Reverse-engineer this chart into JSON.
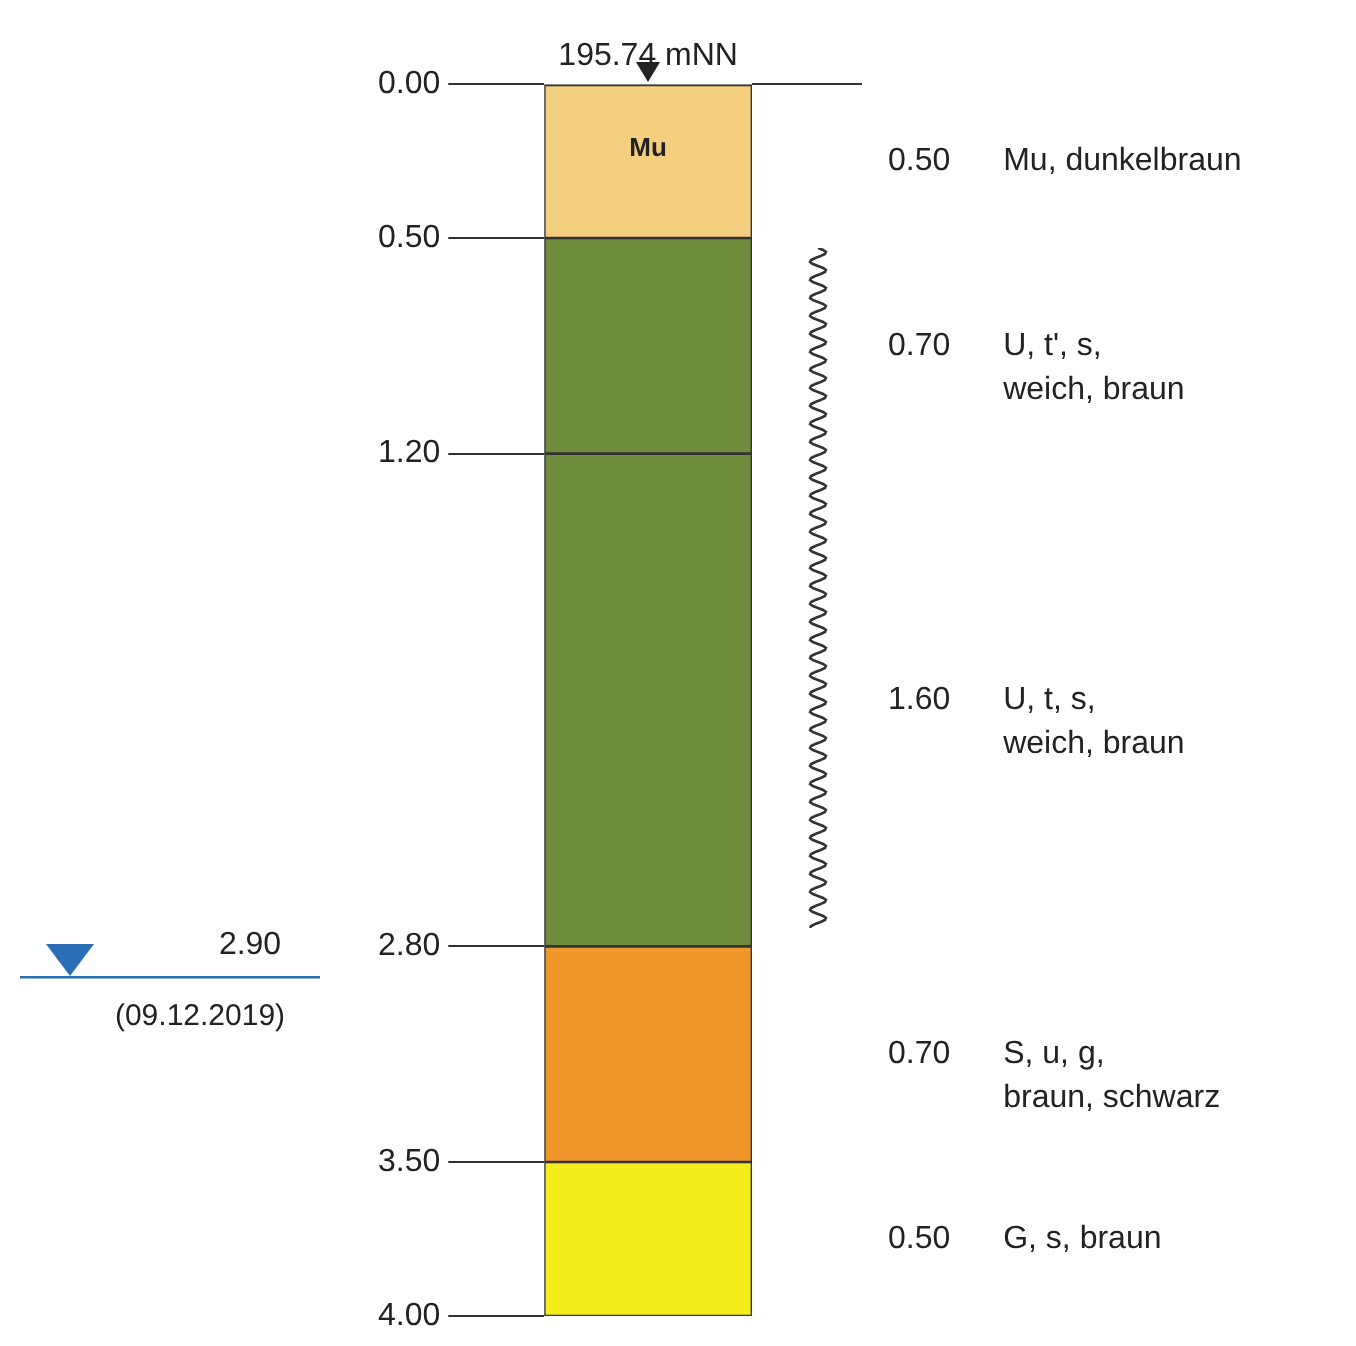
{
  "chart_data": {
    "type": "bar",
    "title": "195.74 mNN",
    "stacked": true,
    "categories": [
      null
    ],
    "series": [
      {
        "name": "0.50 Mu, dunkelbraun",
        "color": "#f5cf80",
        "values": [
          0.5
        ]
      },
      {
        "name": "0.70 U, t', s,\nweich, braun",
        "color": "#6f8c3d",
        "values": [
          0.7
        ]
      },
      {
        "name": "1.60 U, t, s,\nweich, braun",
        "color": "#6f8c3d",
        "values": [
          1.6
        ]
      },
      {
        "name": "0.70 S, u, g,\nbraun, schwarz",
        "color": "#f0962a",
        "values": [
          0.7
        ]
      },
      {
        "name": "0.50 G, s, braun",
        "color": "#f5ec1c",
        "values": [
          0.5
        ]
      }
    ],
    "ylim": [
      4,
      0
    ],
    "yticks": [
      {
        "value": 0,
        "label": "0.00"
      },
      {
        "value": 0.5,
        "label": "0.50"
      },
      {
        "value": 1.2,
        "label": "1.20"
      },
      {
        "value": 2.8,
        "label": "2.80"
      },
      {
        "value": 3.5,
        "label": "3.50"
      },
      {
        "value": 4,
        "label": "4.00"
      }
    ],
    "ref_lines": [
      {
        "axis": "y",
        "value": 2.9,
        "label": "2.90",
        "color": "#2a6fb5"
      }
    ],
    "annotations": [
      "Mu",
      {
        "text": "(09.12.2019)",
        "y": 2.9
      }
    ],
    "grid": false,
    "legend": false
  }
}
